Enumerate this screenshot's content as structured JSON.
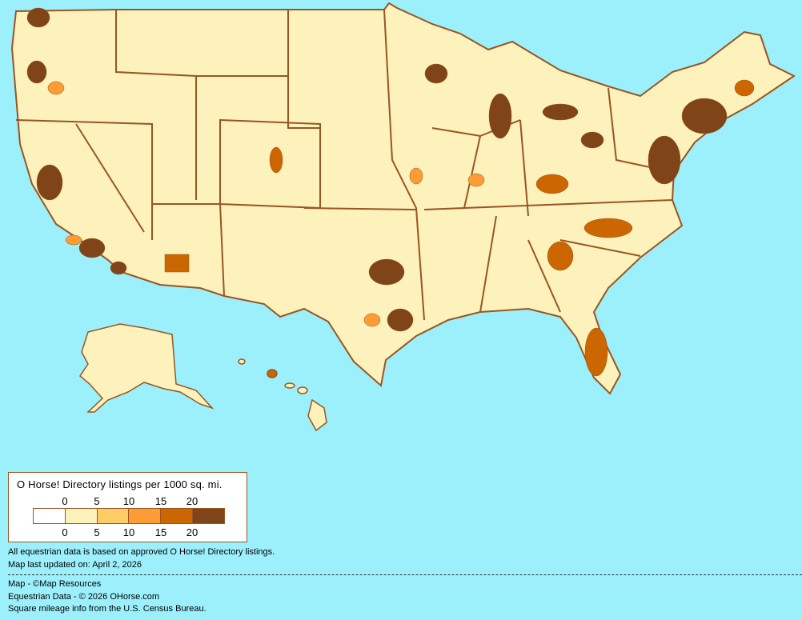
{
  "map": {
    "background_color": "#9cf0fc",
    "border_color": "#995522"
  },
  "legend": {
    "title": "O Horse! Directory listings per 1000 sq. mi.",
    "ticks_top": [
      "0",
      "5",
      "10",
      "15",
      "20"
    ],
    "ticks_bottom": [
      "0",
      "5",
      "10",
      "15",
      "20"
    ],
    "bins": [
      {
        "range": "0",
        "color": "#ffffff"
      },
      {
        "range": "0-5",
        "color": "#fdf1bc"
      },
      {
        "range": "5-10",
        "color": "#fdcc66"
      },
      {
        "range": "10-15",
        "color": "#fb9c35"
      },
      {
        "range": "15-20",
        "color": "#cc6600"
      },
      {
        "range": "20+",
        "color": "#7f4418"
      }
    ]
  },
  "notes": {
    "data_basis": "All equestrian data is based on approved O Horse! Directory listings.",
    "updated": "Map last updated on: April 2, 2026",
    "credit_map": "Map - ©Map Resources",
    "credit_data": "Equestrian Data - © 2026 OHorse.com",
    "credit_census": "Square mileage info from the U.S. Census Bureau."
  }
}
